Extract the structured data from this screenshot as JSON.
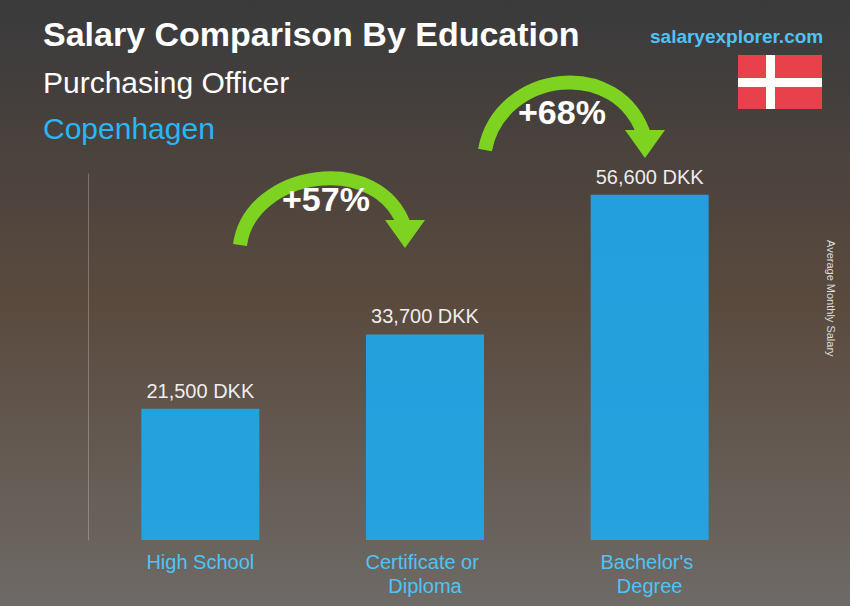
{
  "chart_data": {
    "type": "bar",
    "title": "Salary Comparison By Education",
    "subtitle": "Purchasing Officer",
    "location": "Copenhagen",
    "source": "salaryexplorer.com",
    "y_label": "Average Monthly Salary",
    "categories": [
      "High School",
      "Certificate or Diploma",
      "Bachelor's Degree"
    ],
    "values": [
      21500,
      33700,
      56600
    ],
    "value_labels": [
      "21,500 DKK",
      "33,700 DKK",
      "56,600 DKK"
    ],
    "annotations": [
      "+57%",
      "+68%"
    ],
    "color": "#1ea8ea",
    "ylim": [
      0,
      60000
    ],
    "grid": false,
    "data_labels": true,
    "tick_labels": "x"
  }
}
